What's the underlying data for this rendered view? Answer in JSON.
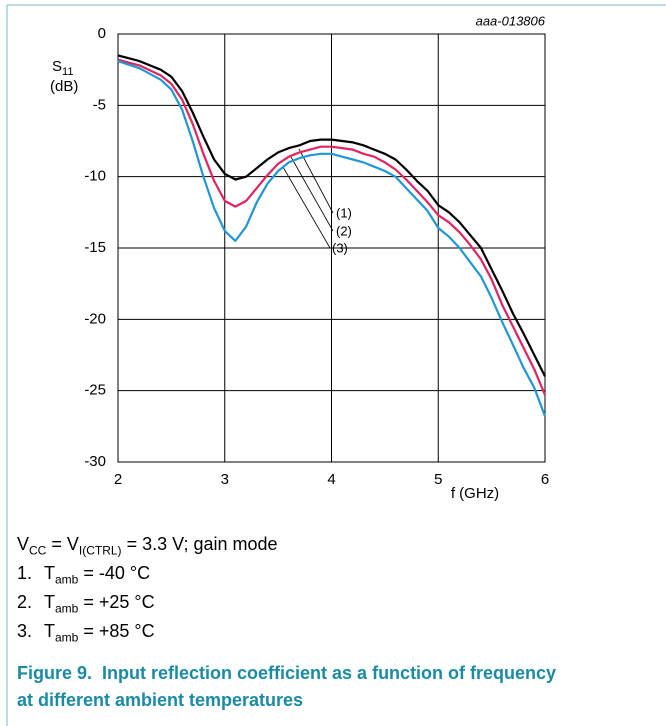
{
  "chart_data": {
    "type": "line",
    "id_label": "aaa-013806",
    "ylabel": {
      "main": "S",
      "sub": "11",
      "unit": "(dB)"
    },
    "xlabel": "f (GHz)",
    "x": [
      2.0,
      2.2,
      2.4,
      2.5,
      2.6,
      2.7,
      2.8,
      2.9,
      3.0,
      3.1,
      3.2,
      3.3,
      3.4,
      3.5,
      3.6,
      3.7,
      3.8,
      3.9,
      4.0,
      4.1,
      4.2,
      4.3,
      4.4,
      4.5,
      4.6,
      4.7,
      4.8,
      4.9,
      5.0,
      5.1,
      5.2,
      5.3,
      5.4,
      5.5,
      5.6,
      5.7,
      5.8,
      5.9,
      6.0
    ],
    "series": [
      {
        "name": "(1)",
        "color": "#000000",
        "values": [
          -1.5,
          -1.9,
          -2.5,
          -3.0,
          -4.0,
          -5.5,
          -7.2,
          -8.8,
          -9.8,
          -10.2,
          -10.0,
          -9.4,
          -8.8,
          -8.3,
          -8.0,
          -7.8,
          -7.5,
          -7.4,
          -7.4,
          -7.5,
          -7.6,
          -7.8,
          -8.1,
          -8.4,
          -8.8,
          -9.5,
          -10.3,
          -11.0,
          -12.0,
          -12.5,
          -13.2,
          -14.1,
          -15.0,
          -16.5,
          -18.0,
          -19.6,
          -21.0,
          -22.5,
          -24.0
        ]
      },
      {
        "name": "(2)",
        "color": "#e3235e",
        "values": [
          -1.8,
          -2.2,
          -2.9,
          -3.5,
          -4.6,
          -6.3,
          -8.4,
          -10.3,
          -11.7,
          -12.1,
          -11.7,
          -10.8,
          -9.9,
          -9.1,
          -8.6,
          -8.3,
          -8.1,
          -7.9,
          -7.9,
          -8.0,
          -8.1,
          -8.4,
          -8.6,
          -9.0,
          -9.5,
          -10.2,
          -11.0,
          -11.8,
          -12.7,
          -13.2,
          -13.9,
          -14.8,
          -15.8,
          -17.2,
          -19.0,
          -20.5,
          -22.0,
          -23.5,
          -25.3
        ]
      },
      {
        "name": "(3)",
        "color": "#1f97d4",
        "values": [
          -1.9,
          -2.4,
          -3.2,
          -3.9,
          -5.3,
          -7.5,
          -10.0,
          -12.2,
          -13.8,
          -14.5,
          -13.5,
          -11.8,
          -10.5,
          -9.6,
          -9.0,
          -8.7,
          -8.5,
          -8.4,
          -8.4,
          -8.6,
          -8.8,
          -9.0,
          -9.3,
          -9.6,
          -10.0,
          -10.8,
          -11.6,
          -12.4,
          -13.6,
          -14.2,
          -15.0,
          -16.0,
          -17.0,
          -18.5,
          -20.2,
          -21.8,
          -23.4,
          -24.8,
          -26.8
        ]
      }
    ],
    "xlim": [
      2,
      6
    ],
    "xticks": [
      2,
      3,
      4,
      5,
      6
    ],
    "ylim": [
      -30,
      0
    ],
    "yticks": [
      0,
      -5,
      -10,
      -15,
      -20,
      -25,
      -30
    ],
    "grid": true,
    "notes": [
      [
        {
          "t": "V"
        },
        {
          "t": "CC",
          "sub": true
        },
        {
          "t": " = V"
        },
        {
          "t": "I(CTRL)",
          "sub": true
        },
        {
          "t": " = 3.3 V; gain mode"
        }
      ],
      [
        {
          "t": "1."
        },
        {
          "t": "T"
        },
        {
          "t": "amb",
          "sub": true
        },
        {
          "t": " = -40 °C"
        }
      ],
      [
        {
          "t": "2."
        },
        {
          "t": "T"
        },
        {
          "t": "amb",
          "sub": true
        },
        {
          "t": " = +25 °C"
        }
      ],
      [
        {
          "t": "3."
        },
        {
          "t": "T"
        },
        {
          "t": "amb",
          "sub": true
        },
        {
          "t": " = +85 °C"
        }
      ]
    ],
    "caption": "Figure 9.  Input reflection coefficient as a function of frequency at different ambient temperatures"
  }
}
